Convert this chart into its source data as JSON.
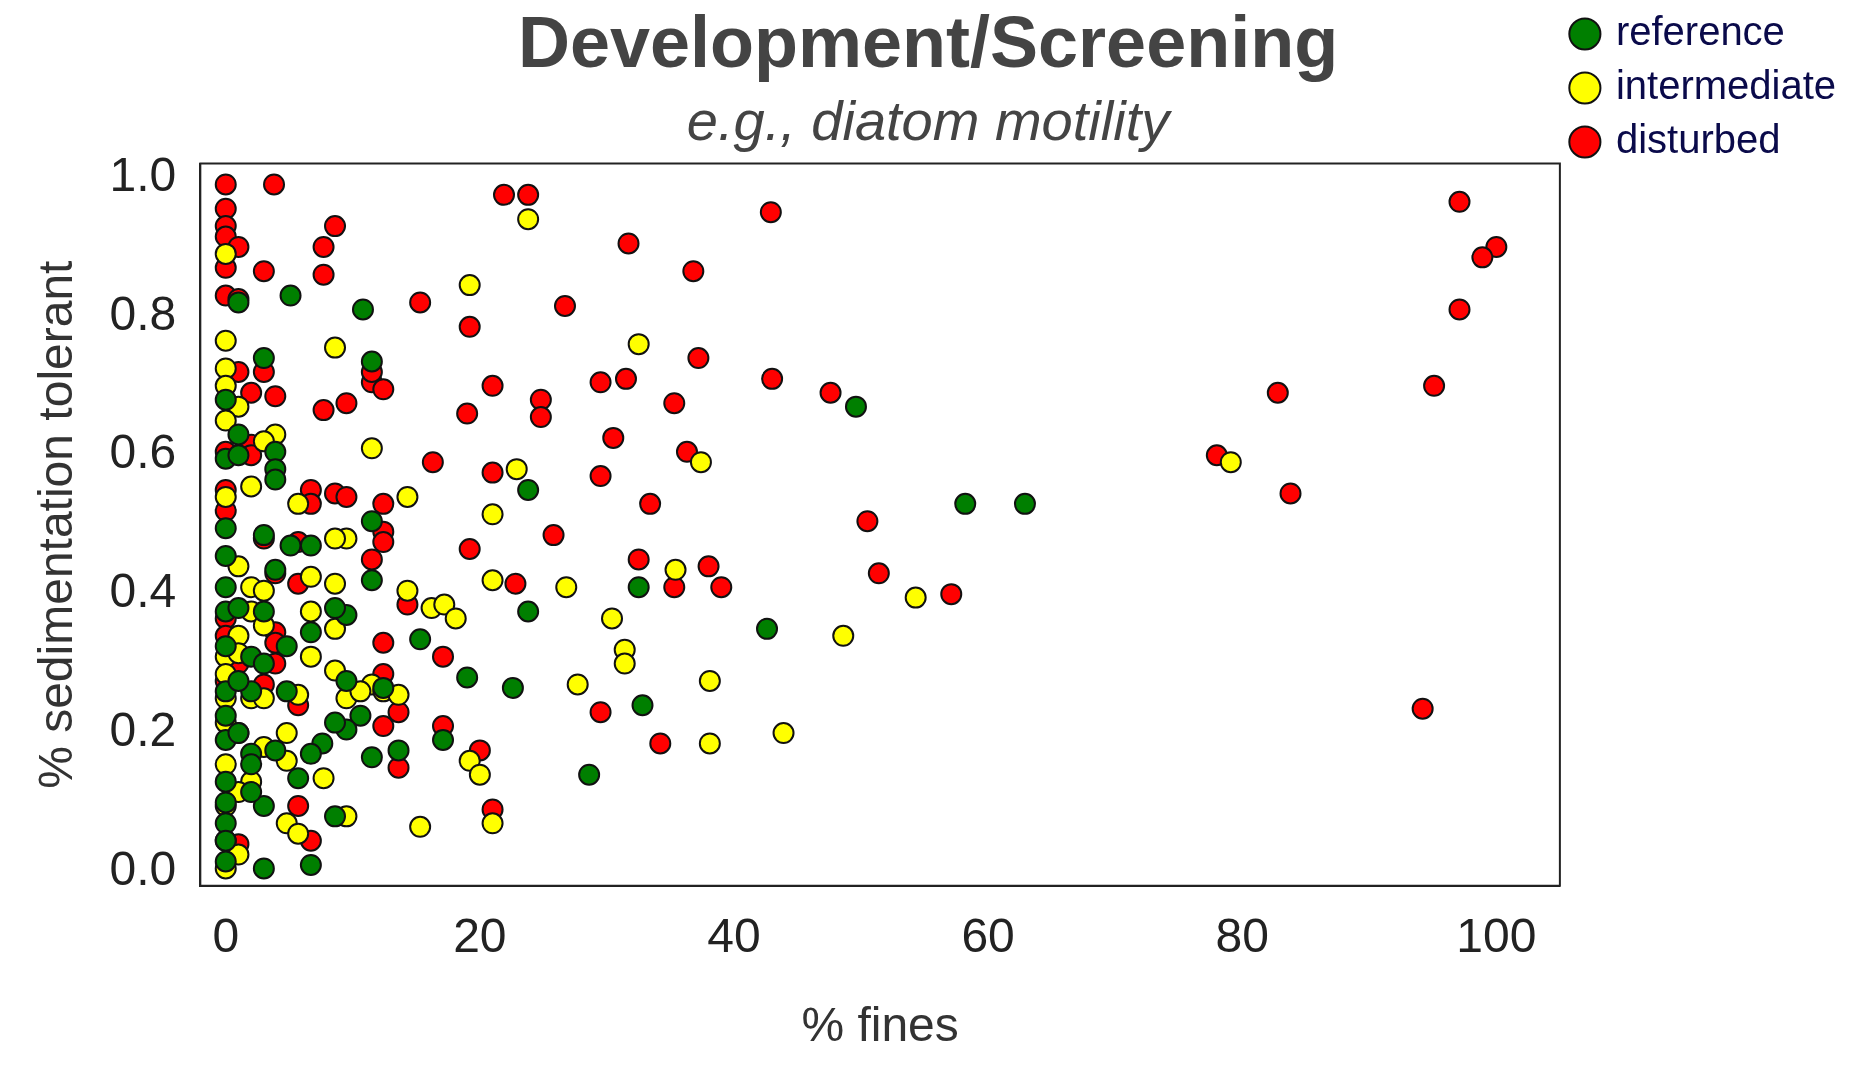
{
  "chart_data": {
    "type": "scatter",
    "title": "Development/Screening",
    "subtitle": "e.g., diatom motility",
    "xlabel": "% fines",
    "ylabel": "% sedimentation tolerant",
    "xlim": [
      -2,
      105
    ],
    "xticks": [
      0,
      20,
      40,
      60,
      80,
      100
    ],
    "ylim": [
      -0.02,
      1.02
    ],
    "yticks": [
      {
        "value": 0,
        "label": "0.0"
      },
      0.2,
      0.4,
      0.6,
      0.8,
      {
        "value": 1,
        "label": "1.0"
      }
    ],
    "grid": false,
    "legend": "top right",
    "marker": "circle",
    "series": [
      {
        "name": "reference",
        "color": "#007f00",
        "x": [
          1,
          5.1,
          10.8,
          3,
          11.5,
          49.6,
          58.2,
          62.9,
          23.8,
          11.5,
          11.5,
          9.5,
          8.6,
          23.8,
          32.5,
          42.6,
          15.3,
          19,
          22.6,
          32.8,
          28.6,
          17.1,
          10.6,
          9.5,
          8.6,
          7.6,
          6.7,
          8.6,
          6.7,
          3,
          5.7,
          3,
          3.9,
          2,
          2,
          2,
          0,
          0,
          0,
          0,
          0,
          0,
          0,
          0,
          0,
          0,
          0,
          0,
          0,
          0,
          0,
          1,
          1,
          3.9,
          3.9,
          3.9,
          3,
          5.1,
          6.7,
          3.9,
          1,
          3,
          4.8,
          2,
          3,
          6.7,
          4.8,
          2,
          1,
          9.5,
          12.4,
          13.6,
          11.5,
          1
        ],
        "values": [
          0.82,
          0.83,
          0.81,
          0.74,
          0.735,
          0.67,
          0.53,
          0.53,
          0.55,
          0.505,
          0.42,
          0.37,
          0.38,
          0.375,
          0.41,
          0.35,
          0.335,
          0.28,
          0.265,
          0.24,
          0.14,
          0.19,
          0.225,
          0.205,
          0.215,
          0.185,
          0.17,
          0.08,
          0.01,
          0.005,
          0.135,
          0.095,
          0.175,
          0.17,
          0.155,
          0.115,
          0.13,
          0.1,
          0.07,
          0.045,
          0.015,
          0.19,
          0.225,
          0.26,
          0.325,
          0.375,
          0.41,
          0.455,
          0.495,
          0.595,
          0.68,
          0.6,
          0.63,
          0.605,
          0.58,
          0.565,
          0.485,
          0.47,
          0.47,
          0.435,
          0.38,
          0.375,
          0.325,
          0.31,
          0.3,
          0.345,
          0.26,
          0.26,
          0.275,
          0.275,
          0.265,
          0.175,
          0.165,
          0.2
        ]
      },
      {
        "name": "intermediate",
        "color": "#ffff00",
        "x": [
          23.8,
          19.2,
          32.5,
          8.6,
          11.5,
          22.9,
          37.4,
          79.1,
          21,
          14.3,
          35.4,
          26.8,
          21,
          14.3,
          16.2,
          17.2,
          18.1,
          30.4,
          31.4,
          31.4,
          27.7,
          38.1,
          54.3,
          48.6,
          43.9,
          38.1,
          15.3,
          21,
          19.2,
          20,
          9.5,
          4.8,
          5.7,
          7.7,
          4.8,
          5.7,
          9.5,
          8.6,
          11.5,
          12.4,
          13.6,
          10.6,
          6.7,
          8.6,
          8.6,
          9.5,
          8.6,
          6.7,
          6.7,
          5.7,
          3.9,
          3,
          1,
          2,
          0,
          0,
          0,
          0,
          0,
          0,
          1,
          2,
          3,
          2,
          1,
          3,
          0,
          1,
          0,
          0,
          2,
          3,
          0,
          0,
          2,
          1,
          0,
          0,
          1,
          0,
          3,
          4.8
        ],
        "values": [
          0.94,
          0.845,
          0.76,
          0.755,
          0.61,
          0.58,
          0.59,
          0.59,
          0.515,
          0.54,
          0.435,
          0.41,
          0.42,
          0.405,
          0.38,
          0.385,
          0.365,
          0.365,
          0.32,
          0.3,
          0.27,
          0.275,
          0.395,
          0.34,
          0.2,
          0.185,
          0.065,
          0.07,
          0.16,
          0.14,
          0.08,
          0.07,
          0.055,
          0.135,
          0.2,
          0.255,
          0.25,
          0.29,
          0.27,
          0.26,
          0.255,
          0.26,
          0.31,
          0.35,
          0.415,
          0.48,
          0.48,
          0.425,
          0.375,
          0.53,
          0.63,
          0.62,
          0.67,
          0.555,
          0.765,
          0.725,
          0.7,
          0.65,
          0.54,
          0.89,
          0.44,
          0.41,
          0.405,
          0.375,
          0.34,
          0.355,
          0.31,
          0.315,
          0.285,
          0.25,
          0.25,
          0.25,
          0.215,
          0.155,
          0.13,
          0.115,
          0.095,
          0.045,
          0.025,
          0.005,
          0.18,
          0.16
        ]
      },
      {
        "name": "disturbed",
        "color": "#ff0000",
        "x": [
          3.8,
          0,
          21.9,
          23.8,
          42.9,
          97.1,
          100,
          98.9,
          97.1,
          95.1,
          82.8,
          78,
          83.8,
          94.2,
          0,
          0,
          0,
          1,
          0,
          3,
          8.6,
          7.7,
          7.7,
          0,
          1,
          15.3,
          31.7,
          36.8,
          26.7,
          19.2,
          37.2,
          43,
          47.6,
          31.5,
          29.5,
          21,
          24.8,
          24.8,
          19,
          35.3,
          30.5,
          16.3,
          21,
          29.5,
          33.4,
          36.3,
          50.5,
          51.4,
          57.1,
          25.8,
          32.5,
          38,
          39,
          35.3,
          22.8,
          19.2,
          14.3,
          17.1,
          17.1,
          20,
          21,
          29.5,
          34.2,
          12.4,
          13.6,
          12.4,
          13.6,
          1,
          3,
          2,
          3.9,
          7.7,
          9.5,
          11.5,
          11.5,
          12.4,
          6.7,
          8.6,
          9.5,
          6.7,
          12.4,
          12.4,
          12.4,
          11.5,
          3,
          5.7,
          5.7,
          3.9,
          0,
          0,
          3.9,
          3.9,
          1,
          3.9,
          0,
          3,
          12.4,
          5.7,
          1,
          5.7,
          6.7,
          1,
          2,
          2,
          0,
          0,
          0
        ],
        "values": [
          0.99,
          0.99,
          0.975,
          0.975,
          0.95,
          0.965,
          0.9,
          0.885,
          0.81,
          0.7,
          0.69,
          0.6,
          0.545,
          0.235,
          0.955,
          0.93,
          0.915,
          0.9,
          0.87,
          0.865,
          0.93,
          0.9,
          0.86,
          0.83,
          0.825,
          0.82,
          0.905,
          0.865,
          0.815,
          0.785,
          0.74,
          0.71,
          0.69,
          0.71,
          0.705,
          0.7,
          0.68,
          0.655,
          0.66,
          0.675,
          0.625,
          0.59,
          0.575,
          0.57,
          0.53,
          0.605,
          0.505,
          0.43,
          0.4,
          0.485,
          0.45,
          0.44,
          0.41,
          0.41,
          0.415,
          0.465,
          0.385,
          0.31,
          0.21,
          0.175,
          0.09,
          0.23,
          0.185,
          0.33,
          0.23,
          0.21,
          0.15,
          0.72,
          0.72,
          0.69,
          0.685,
          0.665,
          0.675,
          0.705,
          0.72,
          0.695,
          0.55,
          0.545,
          0.54,
          0.53,
          0.53,
          0.49,
          0.475,
          0.45,
          0.48,
          0.475,
          0.415,
          0.43,
          0.365,
          0.34,
          0.345,
          0.33,
          0.3,
          0.3,
          0.275,
          0.27,
          0.285,
          0.24,
          0.2,
          0.095,
          0.045,
          0.04,
          0.615,
          0.6,
          0.55,
          0.52,
          0.605
        ]
      }
    ]
  }
}
